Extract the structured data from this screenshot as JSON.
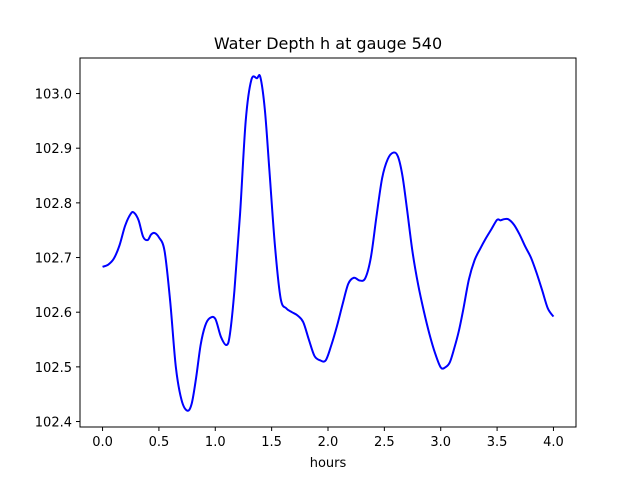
{
  "chart_data": {
    "type": "line",
    "title": "Water Depth h at gauge 540",
    "xlabel": "hours",
    "ylabel": "",
    "xlim": [
      -0.2,
      4.2
    ],
    "ylim": [
      102.39,
      103.065
    ],
    "xticks": [
      0.0,
      0.5,
      1.0,
      1.5,
      2.0,
      2.5,
      3.0,
      3.5,
      4.0
    ],
    "xtick_labels": [
      "0.0",
      "0.5",
      "1.0",
      "1.5",
      "2.0",
      "2.5",
      "3.0",
      "3.5",
      "4.0"
    ],
    "yticks": [
      102.4,
      102.5,
      102.6,
      102.7,
      102.8,
      102.9,
      103.0
    ],
    "ytick_labels": [
      "102.4",
      "102.5",
      "102.6",
      "102.7",
      "102.8",
      "102.9",
      "103.0"
    ],
    "grid": false,
    "series": [
      {
        "color": "#0000ff",
        "x": [
          0.0,
          0.05,
          0.1,
          0.15,
          0.2,
          0.25,
          0.28,
          0.32,
          0.36,
          0.4,
          0.43,
          0.46,
          0.5,
          0.55,
          0.6,
          0.65,
          0.7,
          0.75,
          0.79,
          0.83,
          0.87,
          0.91,
          0.95,
          1.0,
          1.05,
          1.1,
          1.13,
          1.17,
          1.22,
          1.27,
          1.32,
          1.37,
          1.4,
          1.44,
          1.48,
          1.53,
          1.58,
          1.63,
          1.68,
          1.73,
          1.78,
          1.83,
          1.88,
          1.93,
          1.98,
          2.03,
          2.08,
          2.13,
          2.18,
          2.23,
          2.28,
          2.33,
          2.38,
          2.43,
          2.48,
          2.53,
          2.58,
          2.62,
          2.66,
          2.7,
          2.75,
          2.8,
          2.85,
          2.9,
          2.95,
          3.0,
          3.04,
          3.08,
          3.12,
          3.16,
          3.2,
          3.25,
          3.3,
          3.35,
          3.4,
          3.45,
          3.5,
          3.53,
          3.56,
          3.6,
          3.65,
          3.7,
          3.75,
          3.8,
          3.85,
          3.9,
          3.95,
          4.0
        ],
        "y": [
          102.683,
          102.687,
          102.698,
          102.722,
          102.758,
          102.78,
          102.782,
          102.768,
          102.738,
          102.732,
          102.742,
          102.745,
          102.737,
          102.712,
          102.62,
          102.5,
          102.44,
          102.42,
          102.432,
          102.48,
          102.54,
          102.575,
          102.589,
          102.588,
          102.555,
          102.54,
          102.56,
          102.64,
          102.78,
          102.95,
          103.025,
          103.028,
          103.03,
          102.97,
          102.86,
          102.72,
          102.625,
          102.607,
          102.6,
          102.594,
          102.582,
          102.55,
          102.52,
          102.512,
          102.512,
          102.54,
          102.575,
          102.615,
          102.652,
          102.663,
          102.658,
          102.662,
          102.7,
          102.775,
          102.845,
          102.88,
          102.892,
          102.885,
          102.85,
          102.79,
          102.71,
          102.65,
          102.602,
          102.56,
          102.525,
          102.499,
          102.499,
          102.508,
          102.534,
          102.565,
          102.605,
          102.66,
          102.695,
          102.716,
          102.735,
          102.752,
          102.769,
          102.768,
          102.77,
          102.77,
          102.76,
          102.742,
          102.72,
          102.7,
          102.672,
          102.64,
          102.607,
          102.592
        ]
      }
    ]
  }
}
